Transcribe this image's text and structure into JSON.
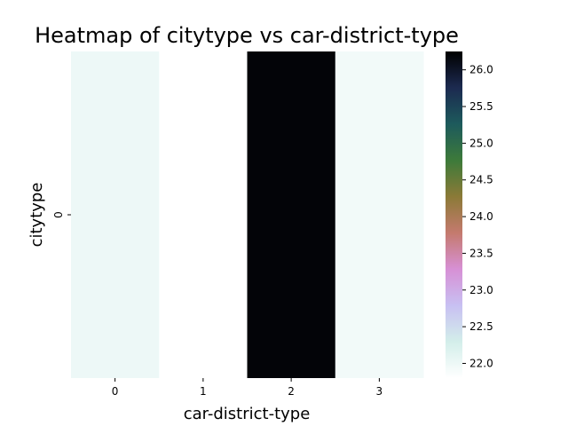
{
  "chart_data": {
    "type": "heatmap",
    "title": "Heatmap of citytype vs car-district-type",
    "xlabel": "car-district-type",
    "ylabel": "citytype",
    "x_categories": [
      "0",
      "1",
      "2",
      "3"
    ],
    "y_categories": [
      "0"
    ],
    "values": [
      [
        22.0,
        21.8,
        26.2,
        21.95
      ]
    ],
    "colorbar": {
      "min": 21.8,
      "max": 26.25,
      "ticks": [
        "22.0",
        "22.5",
        "23.0",
        "23.5",
        "24.0",
        "24.5",
        "25.0",
        "25.5",
        "26.0"
      ],
      "colormap": "cubehelix_r",
      "stops": [
        "#ffffff",
        "#d3eeea",
        "#c8c0f2",
        "#d790d5",
        "#c47a6e",
        "#8b7a37",
        "#3d7a3a",
        "#1d5a5c",
        "#1c2a50",
        "#000000"
      ]
    },
    "grid": false,
    "legend": "colorbar-right"
  }
}
